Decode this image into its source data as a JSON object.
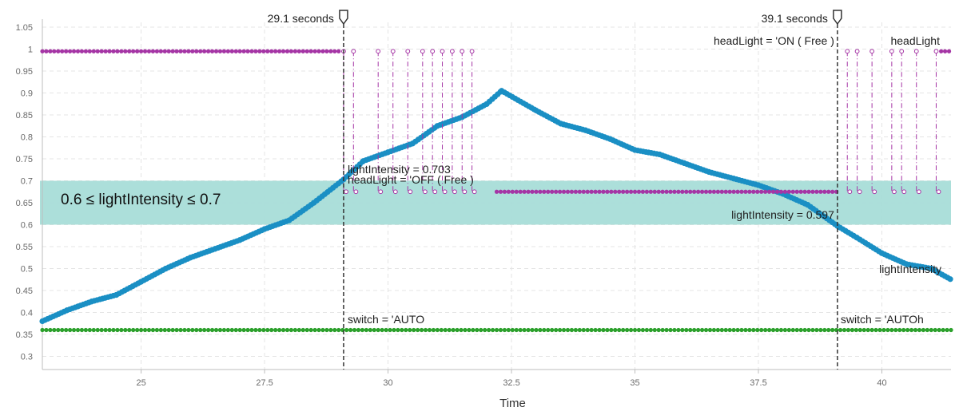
{
  "chart_data": {
    "type": "line",
    "xlabel": "Time",
    "ylabel": "",
    "xlim": [
      23.0,
      41.4
    ],
    "ylim": [
      0.27,
      1.05
    ],
    "x_ticks": [
      25,
      27.5,
      30,
      32.5,
      35,
      37.5,
      40
    ],
    "x_tick_labels": [
      "25",
      "27.5",
      "30",
      "32.5",
      "35",
      "37.5",
      "40"
    ],
    "y_ticks": [
      0.3,
      0.35,
      0.4,
      0.45,
      0.5,
      0.55,
      0.6,
      0.65,
      0.7,
      0.75,
      0.8,
      0.85,
      0.9,
      0.95,
      1,
      1.05
    ],
    "y_tick_labels": [
      "0.3",
      "0.35",
      "0.4",
      "0.45",
      "0.5",
      "0.55",
      "0.6",
      "0.65",
      "0.7",
      "0.75",
      "0.8",
      "0.85",
      "0.9",
      "0.95",
      "1",
      "1.05"
    ],
    "grid": true,
    "band": {
      "y_min": 0.6,
      "y_max": 0.7,
      "label": "0.6 ≤ lightIntensity ≤ 0.7",
      "color": "#a8ddd8"
    },
    "cursors": [
      {
        "x": 29.1,
        "label": "29.1 seconds",
        "annotations": [
          {
            "series": "lightIntensity",
            "text": "lightIntensity = 0.703"
          },
          {
            "series": "headLight",
            "text": "headLight = 'OFF ( Free )"
          },
          {
            "series": "switch",
            "text": "switch = 'AUTO"
          }
        ]
      },
      {
        "x": 39.1,
        "label": "39.1 seconds",
        "annotations": [
          {
            "series": "headLight",
            "text": "headLight = 'ON ( Free )"
          },
          {
            "series": "lightIntensity",
            "text": "lightIntensity = 0.597"
          },
          {
            "series": "switch",
            "text": "switch = 'AUTOh"
          }
        ]
      }
    ],
    "series": [
      {
        "name": "lightIntensity",
        "color": "#1a8fc4",
        "x": [
          23.0,
          23.5,
          24.0,
          24.5,
          25.0,
          25.5,
          26.0,
          26.5,
          27.0,
          27.5,
          28.0,
          28.5,
          29.1,
          29.5,
          30.0,
          30.5,
          31.0,
          31.5,
          32.0,
          32.3,
          33.0,
          33.5,
          34.0,
          34.5,
          35.0,
          35.5,
          36.0,
          36.5,
          37.0,
          37.5,
          38.0,
          38.5,
          39.1,
          39.5,
          40.0,
          40.5,
          41.0,
          41.4
        ],
        "y": [
          0.38,
          0.405,
          0.425,
          0.44,
          0.47,
          0.5,
          0.525,
          0.545,
          0.565,
          0.59,
          0.61,
          0.65,
          0.703,
          0.745,
          0.765,
          0.785,
          0.825,
          0.845,
          0.875,
          0.905,
          0.86,
          0.83,
          0.815,
          0.795,
          0.77,
          0.76,
          0.74,
          0.72,
          0.705,
          0.69,
          0.67,
          0.645,
          0.597,
          0.57,
          0.535,
          0.51,
          0.5,
          0.475
        ]
      },
      {
        "name": "headLight",
        "color": "#a535a5",
        "levels": {
          "ON": 0.995,
          "OFF": 0.675
        },
        "segments": [
          {
            "x_start": 23.0,
            "x_end": 29.0,
            "state": "ON",
            "style": "solid"
          },
          {
            "x_start": 29.0,
            "x_end": 31.8,
            "state": "toggling",
            "style": "dashdot"
          },
          {
            "x_start": 32.2,
            "x_end": 39.1,
            "state": "OFF",
            "style": "solid"
          },
          {
            "x_start": 39.1,
            "x_end": 41.0,
            "state": "toggling",
            "style": "dashdot"
          },
          {
            "x_start": 41.2,
            "x_end": 41.4,
            "state": "ON",
            "style": "solid"
          }
        ],
        "toggle_times": [
          29.1,
          29.3,
          29.8,
          30.1,
          30.4,
          30.7,
          30.9,
          31.1,
          31.3,
          31.5,
          31.7,
          39.3,
          39.5,
          39.8,
          40.2,
          40.4,
          40.7,
          41.1
        ],
        "end_label": "headLight"
      },
      {
        "name": "switch",
        "color": "#2ca02c",
        "x": [
          23.0,
          41.4
        ],
        "y": [
          0.36,
          0.36
        ]
      }
    ],
    "end_labels": {
      "lightIntensity": "lightIntensity",
      "headLight": "headLight"
    }
  }
}
